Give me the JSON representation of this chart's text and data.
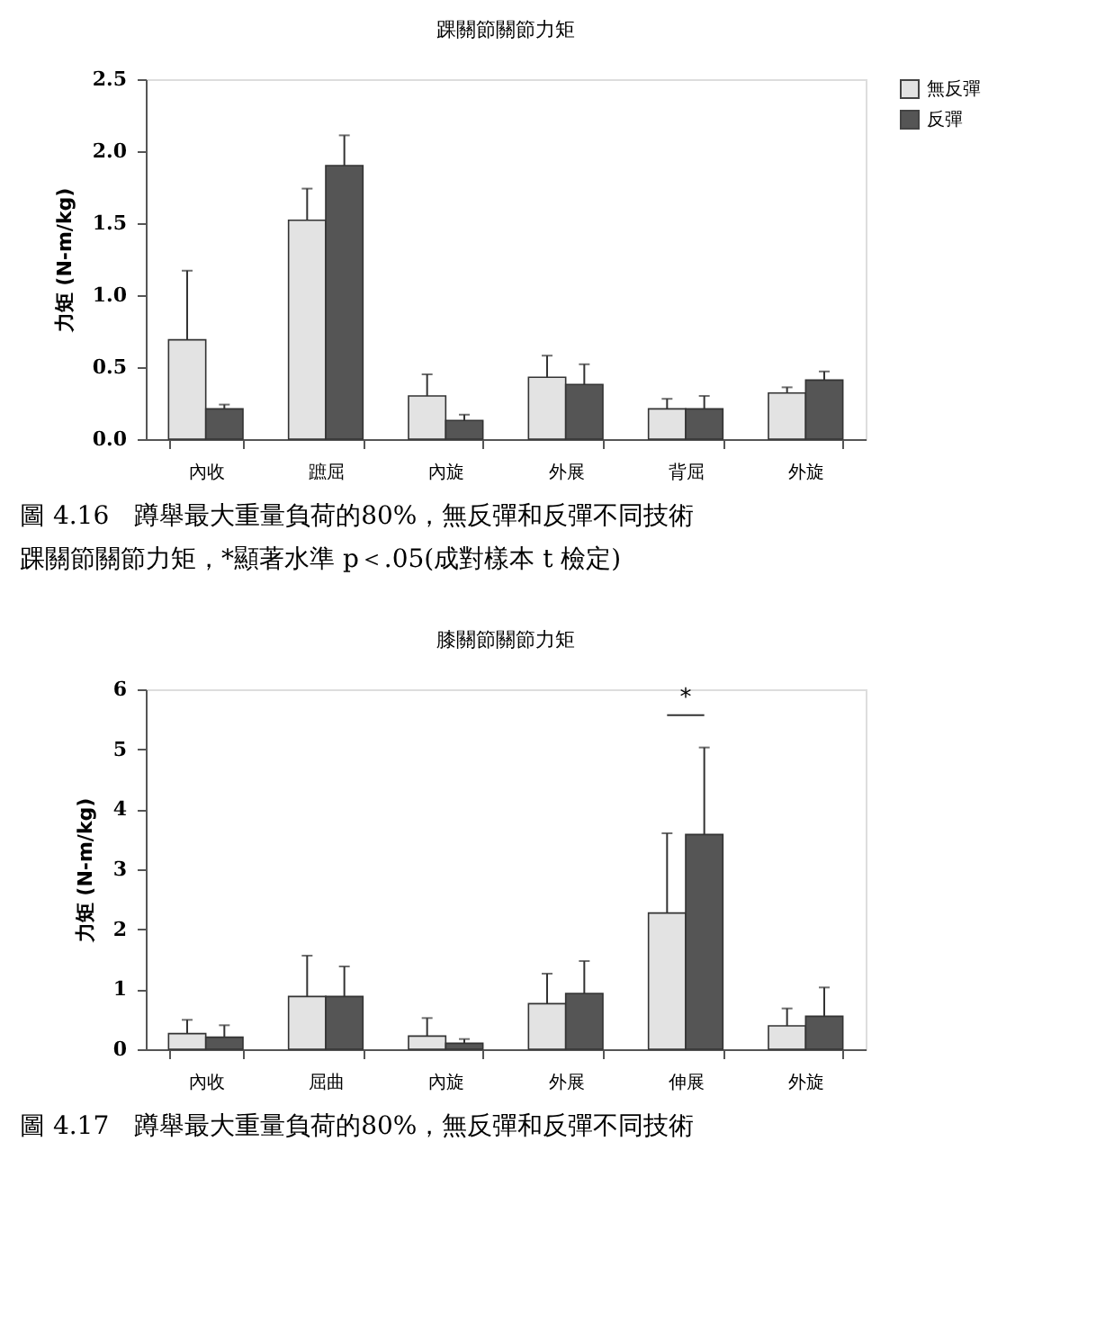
{
  "chart_data": [
    {
      "type": "bar",
      "title": "踝關節關節力矩",
      "ylabel": "力矩 (N-m/kg)",
      "categories": [
        "內收",
        "蹠屈",
        "內旋",
        "外展",
        "背屈",
        "外旋"
      ],
      "series": [
        {
          "name": "無反彈",
          "color": "#e3e3e3",
          "values": [
            0.69,
            1.52,
            0.3,
            0.43,
            0.21,
            0.32
          ],
          "errors": [
            [
              0.69,
              1.17
            ],
            [
              1.52,
              1.74
            ],
            [
              0.3,
              0.45
            ],
            [
              0.43,
              0.58
            ],
            [
              0.21,
              0.28
            ],
            [
              0.32,
              0.36
            ]
          ]
        },
        {
          "name": "反彈",
          "color": "#555555",
          "values": [
            0.21,
            1.9,
            0.13,
            0.38,
            0.21,
            0.41
          ],
          "errors": [
            [
              0.21,
              0.24
            ],
            [
              1.9,
              2.11
            ],
            [
              0.13,
              0.17
            ],
            [
              0.38,
              0.52
            ],
            [
              0.21,
              0.3
            ],
            [
              0.41,
              0.47
            ]
          ]
        }
      ],
      "ylim": [
        0,
        2.5
      ],
      "yticks": [
        {
          "value": 0,
          "label": "0.0"
        },
        {
          "value": 0.5,
          "label": "0.5"
        },
        {
          "value": 1,
          "label": "1.0"
        },
        {
          "value": 1.5,
          "label": "1.5"
        },
        {
          "value": 2,
          "label": "2.0"
        },
        {
          "value": 2.5,
          "label": "2.5"
        }
      ],
      "grid": false,
      "legend": "right",
      "annotations": [
        "圖 4.16　蹲舉最大重量負荷的80%，無反彈和反彈不同技術",
        "踝關節關節力矩，*顯著水準 p＜.05(成對樣本 t 檢定)"
      ]
    },
    {
      "type": "bar",
      "title": "膝關節關節力矩",
      "ylabel": "力矩 (N-m/kg)",
      "categories": [
        "內收",
        "屈曲",
        "內旋",
        "外展",
        "伸展",
        "外旋"
      ],
      "series": [
        {
          "name": "無反彈",
          "color": "#e3e3e3",
          "values": [
            0.26,
            0.88,
            0.22,
            0.76,
            2.27,
            0.39
          ],
          "errors": [
            [
              0.26,
              0.49
            ],
            [
              0.88,
              1.56
            ],
            [
              0.22,
              0.52
            ],
            [
              0.76,
              1.26
            ],
            [
              2.27,
              3.6
            ],
            [
              0.39,
              0.68
            ]
          ]
        },
        {
          "name": "反彈",
          "color": "#555555",
          "values": [
            0.2,
            0.88,
            0.1,
            0.93,
            3.58,
            0.55
          ],
          "errors": [
            [
              0.2,
              0.4
            ],
            [
              0.88,
              1.38
            ],
            [
              0.1,
              0.17
            ],
            [
              0.93,
              1.47
            ],
            [
              3.58,
              5.03
            ],
            [
              0.55,
              1.03
            ]
          ]
        }
      ],
      "ylim": [
        0,
        6
      ],
      "yticks": [
        0,
        1,
        2,
        3,
        4,
        5,
        6
      ],
      "grid": false,
      "legend": "right",
      "annotations": [
        "*",
        "圖 4.17　蹲舉最大重量負荷的80%，無反彈和反彈不同技術"
      ]
    }
  ]
}
